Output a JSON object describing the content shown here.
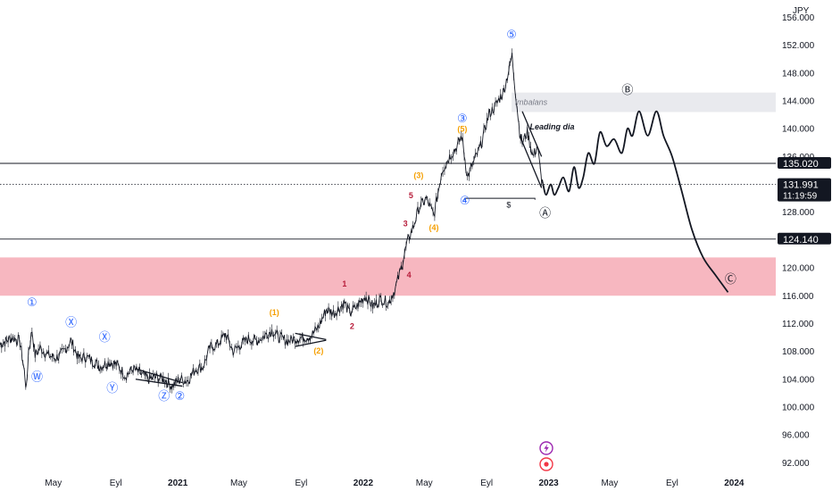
{
  "currency": "JPY",
  "colors": {
    "price": "#131722",
    "blue_wave": "#2962ff",
    "orange_wave": "#f59f00",
    "red_wave": "#b71c3a",
    "demand_zone": "#f7b7c0",
    "imbalance_zone": "#e9eaee",
    "price_tag_bg": "#131722",
    "lightning": "#9c27b0",
    "record": "#f23645"
  },
  "x_axis": {
    "ticks": [
      {
        "label": "May",
        "date": "2020-05-01"
      },
      {
        "label": "Eyl",
        "date": "2020-09-01"
      },
      {
        "label": "2021",
        "date": "2021-01-01"
      },
      {
        "label": "May",
        "date": "2021-05-01"
      },
      {
        "label": "Eyl",
        "date": "2021-09-01"
      },
      {
        "label": "2022",
        "date": "2022-01-01"
      },
      {
        "label": "May",
        "date": "2022-05-01"
      },
      {
        "label": "Eyl",
        "date": "2022-09-01"
      },
      {
        "label": "2023",
        "date": "2023-01-01"
      },
      {
        "label": "May",
        "date": "2023-05-01"
      },
      {
        "label": "Eyl",
        "date": "2023-09-01"
      },
      {
        "label": "2024",
        "date": "2024-01-01"
      }
    ]
  },
  "y_axis": {
    "ticks": [
      "92.000",
      "96.000",
      "100.000",
      "104.000",
      "108.000",
      "112.000",
      "116.000",
      "120.000",
      "124.000",
      "128.000",
      "132.000",
      "136.000",
      "140.000",
      "144.000",
      "148.000",
      "152.000",
      "156.000"
    ]
  },
  "price_tags": [
    {
      "value": "135.020",
      "price": 135.02,
      "kind": "level"
    },
    {
      "value": "131.991",
      "price": 131.991,
      "kind": "last",
      "sub": "11:19:59"
    },
    {
      "value": "124.140",
      "price": 124.14,
      "kind": "level"
    }
  ],
  "annotations": {
    "imbalance": "imbalans",
    "leading": "Leading dia",
    "dollar": "$"
  },
  "wave_labels": [
    {
      "text": "①",
      "date": "2020-03-20",
      "price": 114.5,
      "color": "blue"
    },
    {
      "text": "Ⓦ",
      "date": "2020-03-30",
      "price": 103.8,
      "color": "blue"
    },
    {
      "text": "Ⓧ",
      "date": "2020-06-05",
      "price": 111.6,
      "color": "blue"
    },
    {
      "text": "Ⓧ",
      "date": "2020-08-10",
      "price": 109.5,
      "color": "blue"
    },
    {
      "text": "Ⓨ",
      "date": "2020-08-25",
      "price": 102.2,
      "color": "blue"
    },
    {
      "text": "Ⓩ",
      "date": "2020-12-05",
      "price": 101.0,
      "color": "blue"
    },
    {
      "text": "②",
      "date": "2021-01-05",
      "price": 101.0,
      "color": "blue"
    },
    {
      "text": "(1)",
      "date": "2021-07-10",
      "price": 113.2,
      "color": "orange"
    },
    {
      "text": "(2)",
      "date": "2021-10-05",
      "price": 107.7,
      "color": "orange"
    },
    {
      "text": "1",
      "date": "2021-11-25",
      "price": 117.3,
      "color": "red"
    },
    {
      "text": "2",
      "date": "2021-12-10",
      "price": 111.2,
      "color": "red"
    },
    {
      "text": "3",
      "date": "2022-03-25",
      "price": 126.0,
      "color": "red"
    },
    {
      "text": "4",
      "date": "2022-04-01",
      "price": 118.6,
      "color": "red"
    },
    {
      "text": "5",
      "date": "2022-04-05",
      "price": 130.0,
      "color": "red"
    },
    {
      "text": "(3)",
      "date": "2022-04-20",
      "price": 132.9,
      "color": "orange"
    },
    {
      "text": "(4)",
      "date": "2022-05-20",
      "price": 125.4,
      "color": "orange"
    },
    {
      "text": "(5)",
      "date": "2022-07-15",
      "price": 139.6,
      "color": "orange"
    },
    {
      "text": "③",
      "date": "2022-07-15",
      "price": 140.9,
      "color": "blue"
    },
    {
      "text": "④",
      "date": "2022-07-20",
      "price": 129.1,
      "color": "blue"
    },
    {
      "text": "⑤",
      "date": "2022-10-20",
      "price": 153.0,
      "color": "blue"
    },
    {
      "text": "Ⓐ",
      "date": "2022-12-25",
      "price": 127.3,
      "color": "black"
    },
    {
      "text": "Ⓑ",
      "date": "2023-06-05",
      "price": 145.0,
      "color": "black"
    },
    {
      "text": "Ⓒ",
      "date": "2023-12-25",
      "price": 117.8,
      "color": "black"
    }
  ],
  "chart_data": {
    "type": "line",
    "title": "",
    "xlabel": "",
    "ylabel": "",
    "ylim": [
      90.5,
      158.5
    ],
    "xlim": [
      "2020-01-17",
      "2024-03-23"
    ],
    "grid": false,
    "series": [
      {
        "role": "price",
        "x": [
          "2020-01-17",
          "2020-02-10",
          "2020-02-25",
          "2020-03-05",
          "2020-03-09",
          "2020-03-13",
          "2020-03-20",
          "2020-03-26",
          "2020-04-05",
          "2020-04-20",
          "2020-05-05",
          "2020-05-20",
          "2020-06-05",
          "2020-06-20",
          "2020-07-05",
          "2020-07-20",
          "2020-08-01",
          "2020-08-20",
          "2020-09-05",
          "2020-09-20",
          "2020-10-05",
          "2020-10-20",
          "2020-11-05",
          "2020-11-20",
          "2020-12-05",
          "2020-12-20",
          "2021-01-05",
          "2021-01-20",
          "2021-02-05",
          "2021-02-20",
          "2021-03-05",
          "2021-03-20",
          "2021-04-05",
          "2021-04-20",
          "2021-05-05",
          "2021-05-20",
          "2021-06-05",
          "2021-06-20",
          "2021-07-05",
          "2021-07-20",
          "2021-08-05",
          "2021-08-20",
          "2021-09-05",
          "2021-09-20",
          "2021-10-05",
          "2021-10-20",
          "2021-11-05",
          "2021-11-25",
          "2021-12-05",
          "2021-12-20",
          "2022-01-05",
          "2022-01-20",
          "2022-02-05",
          "2022-02-20",
          "2022-03-05",
          "2022-03-15",
          "2022-03-28",
          "2022-04-10",
          "2022-04-20",
          "2022-05-05",
          "2022-05-20",
          "2022-06-05",
          "2022-06-20",
          "2022-07-05",
          "2022-07-14",
          "2022-07-25",
          "2022-08-05",
          "2022-08-20",
          "2022-09-05",
          "2022-09-20",
          "2022-10-05",
          "2022-10-21",
          "2022-10-26",
          "2022-11-05",
          "2022-11-10",
          "2022-11-20",
          "2022-12-01",
          "2022-12-10",
          "2022-12-17",
          "2022-12-21"
        ],
        "y": [
          109.0,
          110.0,
          109.5,
          105.0,
          102.5,
          108.0,
          111.0,
          107.5,
          108.5,
          107.5,
          107.0,
          107.8,
          109.5,
          107.0,
          107.2,
          106.5,
          105.8,
          106.5,
          106.0,
          104.5,
          105.5,
          104.8,
          104.0,
          104.3,
          104.0,
          103.0,
          104.0,
          103.8,
          105.5,
          105.8,
          108.5,
          109.0,
          110.5,
          108.0,
          109.0,
          109.8,
          109.5,
          110.2,
          111.0,
          110.0,
          109.5,
          109.8,
          110.0,
          110.2,
          111.5,
          114.0,
          113.5,
          115.0,
          113.5,
          114.5,
          116.0,
          114.5,
          115.5,
          115.0,
          117.0,
          119.5,
          123.5,
          126.0,
          128.5,
          130.0,
          127.5,
          134.0,
          136.0,
          137.5,
          139.0,
          133.0,
          135.0,
          137.5,
          142.0,
          143.5,
          145.5,
          150.5,
          146.5,
          139.5,
          138.0,
          139.5,
          136.0,
          137.5,
          133.0,
          132.0
        ]
      },
      {
        "role": "projection",
        "x": [
          "2022-12-21",
          "2022-12-27",
          "2023-01-05",
          "2023-01-12",
          "2023-01-20",
          "2023-01-30",
          "2023-02-10",
          "2023-02-20",
          "2023-03-01",
          "2023-03-10",
          "2023-03-20",
          "2023-04-01",
          "2023-04-12",
          "2023-04-25",
          "2023-05-10",
          "2023-05-25",
          "2023-06-05",
          "2023-06-15",
          "2023-06-28",
          "2023-07-15",
          "2023-08-01",
          "2023-08-15",
          "2023-09-01",
          "2023-09-20",
          "2023-10-10",
          "2023-11-01",
          "2023-11-25",
          "2023-12-20"
        ],
        "y": [
          132.0,
          130.5,
          132.0,
          130.5,
          131.5,
          133.0,
          131.0,
          134.5,
          131.5,
          133.0,
          136.5,
          135.0,
          139.5,
          137.5,
          138.5,
          136.5,
          140.0,
          139.0,
          142.5,
          139.0,
          142.5,
          139.0,
          136.0,
          131.0,
          125.5,
          121.5,
          119.0,
          116.5
        ]
      }
    ],
    "horizontal_levels": [
      135.02,
      131.991,
      124.14
    ],
    "zones": [
      {
        "name": "demand",
        "from": 116.0,
        "to": 121.5
      },
      {
        "name": "imbalans",
        "from": 142.4,
        "to": 145.2,
        "start": "2022-10-20"
      }
    ]
  },
  "drawings": {
    "leading_diagonal": [
      {
        "from_date": "2022-11-10",
        "from_price": 142.5,
        "to_date": "2022-12-18",
        "to_price": 136.0
      },
      {
        "from_date": "2022-11-05",
        "from_price": 139.0,
        "to_date": "2022-12-18",
        "to_price": 131.5
      }
    ],
    "wedge_2020": [
      {
        "from_date": "2020-10-10",
        "from_price": 105.5,
        "to_date": "2021-01-10",
        "to_price": 103.5
      },
      {
        "from_date": "2020-10-10",
        "from_price": 104.0,
        "to_date": "2021-01-10",
        "to_price": 103.0
      }
    ],
    "triangle_2021": [
      {
        "from_date": "2021-08-20",
        "from_price": 110.6,
        "to_date": "2021-10-20",
        "to_price": 109.7
      },
      {
        "from_date": "2021-08-20",
        "from_price": 108.7,
        "to_date": "2021-10-20",
        "to_price": 109.6
      }
    ],
    "equal_lows": {
      "from_date": "2022-07-20",
      "to_date": "2022-12-05",
      "price": 130.0
    }
  }
}
